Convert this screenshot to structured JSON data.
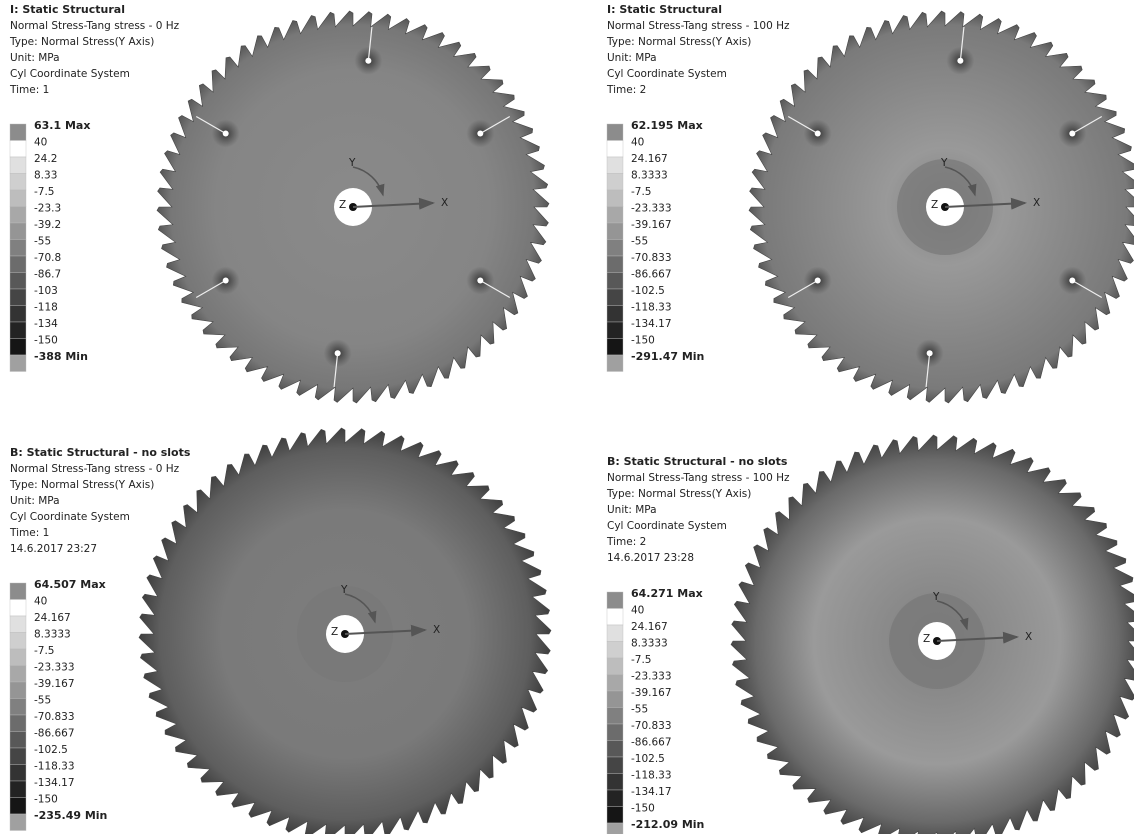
{
  "triad": {
    "x": "X",
    "y": "Y",
    "z": "Z"
  },
  "panels": [
    {
      "title": "I: Static Structural",
      "lines": [
        "Normal Stress-Tang stress - 0 Hz",
        "Type: Normal Stress(Y Axis)",
        "Unit: MPa",
        "Cyl Coordinate System",
        "Time: 1"
      ],
      "legend": {
        "max": "63.1 Max",
        "levels": [
          "40",
          "24.2",
          "8.33",
          "-7.5",
          "-23.3",
          "-39.2",
          "-55",
          "-70.8",
          "-86.7",
          "-103",
          "-118",
          "-134",
          "-150"
        ],
        "min": "-388 Min"
      }
    },
    {
      "title": "I: Static Structural",
      "lines": [
        "Normal Stress-Tang stress - 100 Hz",
        "Type: Normal Stress(Y Axis)",
        "Unit: MPa",
        "Cyl Coordinate System",
        "Time: 2"
      ],
      "legend": {
        "max": "62.195 Max",
        "levels": [
          "40",
          "24.167",
          "8.3333",
          "-7.5",
          "-23.333",
          "-39.167",
          "-55",
          "-70.833",
          "-86.667",
          "-102.5",
          "-118.33",
          "-134.17",
          "-150"
        ],
        "min": "-291.47 Min"
      }
    },
    {
      "title": "B: Static Structural - no slots",
      "lines": [
        "Normal Stress-Tang stress - 0 Hz",
        "Type: Normal Stress(Y Axis)",
        "Unit: MPa",
        "Cyl Coordinate System",
        "Time: 1",
        "14.6.2017 23:27"
      ],
      "legend": {
        "max": "64.507 Max",
        "levels": [
          "40",
          "24.167",
          "8.3333",
          "-7.5",
          "-23.333",
          "-39.167",
          "-55",
          "-70.833",
          "-86.667",
          "-102.5",
          "-118.33",
          "-134.17",
          "-150"
        ],
        "min": "-235.49 Min"
      }
    },
    {
      "title": "B: Static Structural - no slots",
      "lines": [
        "Normal Stress-Tang stress - 100 Hz",
        "Type: Normal Stress(Y Axis)",
        "Unit: MPa",
        "Cyl Coordinate System",
        "Time: 2",
        "14.6.2017 23:28"
      ],
      "legend": {
        "max": "64.271 Max",
        "levels": [
          "40",
          "24.167",
          "8.3333",
          "-7.5",
          "-23.333",
          "-39.167",
          "-55",
          "-70.833",
          "-86.667",
          "-102.5",
          "-118.33",
          "-134.17",
          "-150"
        ],
        "min": "-212.09 Min"
      }
    }
  ]
}
